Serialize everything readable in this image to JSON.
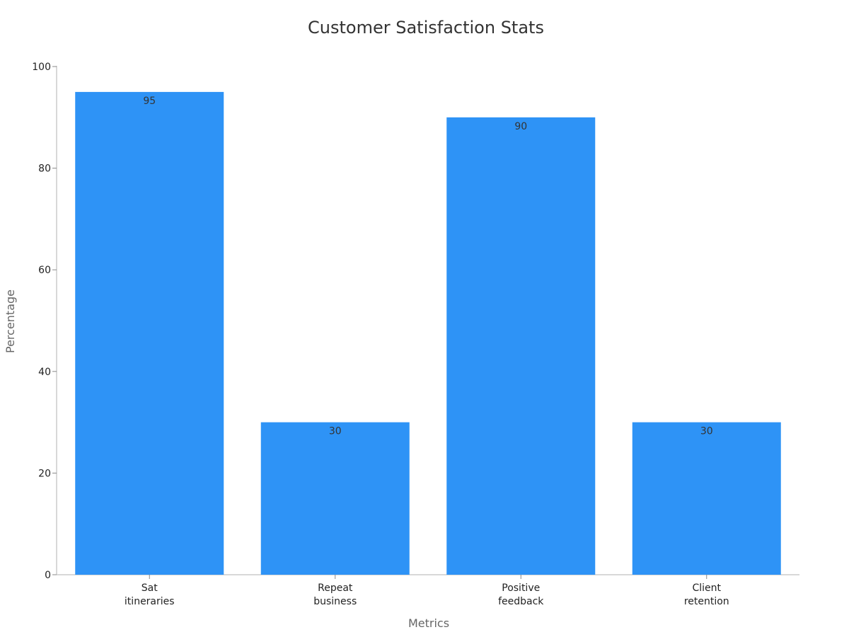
{
  "chart_data": {
    "type": "bar",
    "title": "Customer Satisfaction Stats",
    "xlabel": "Metrics",
    "ylabel": "Percentage",
    "categories": [
      [
        "Sat",
        "itineraries"
      ],
      [
        "Repeat",
        "business"
      ],
      [
        "Positive",
        "feedback"
      ],
      [
        "Client",
        "retention"
      ]
    ],
    "values": [
      95,
      30,
      90,
      30
    ],
    "ylim": [
      0,
      100
    ],
    "yticks": [
      0,
      20,
      40,
      60,
      80,
      100
    ],
    "bar_color": "#2e93f6",
    "grid": false,
    "legend": "none"
  }
}
